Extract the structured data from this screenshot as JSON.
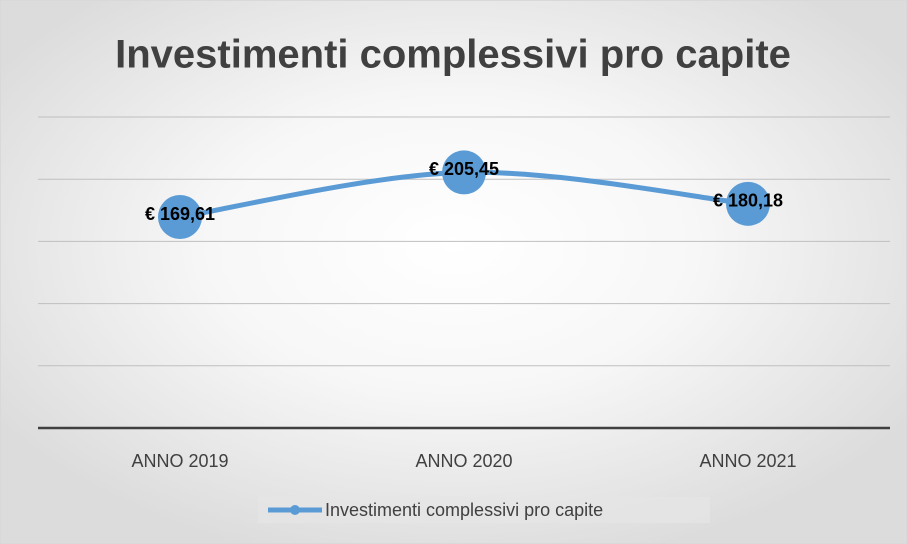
{
  "chart_data": {
    "type": "line",
    "title": "Investimenti complessivi pro capite",
    "categories": [
      "ANNO 2019",
      "ANNO 2020",
      "ANNO 2021"
    ],
    "series": [
      {
        "name": "Investimenti complessivi pro capite",
        "color": "#5b9bd5",
        "values": [
          169.61,
          205.45,
          180.18
        ],
        "value_labels": [
          "€ 169,61",
          "€ 205,45",
          "€ 180,18"
        ]
      }
    ],
    "ylim": [
      0,
      250
    ],
    "yticks": [
      0,
      50,
      100,
      150,
      200,
      250
    ],
    "grid": true,
    "smooth": true,
    "legend": "bottom"
  }
}
